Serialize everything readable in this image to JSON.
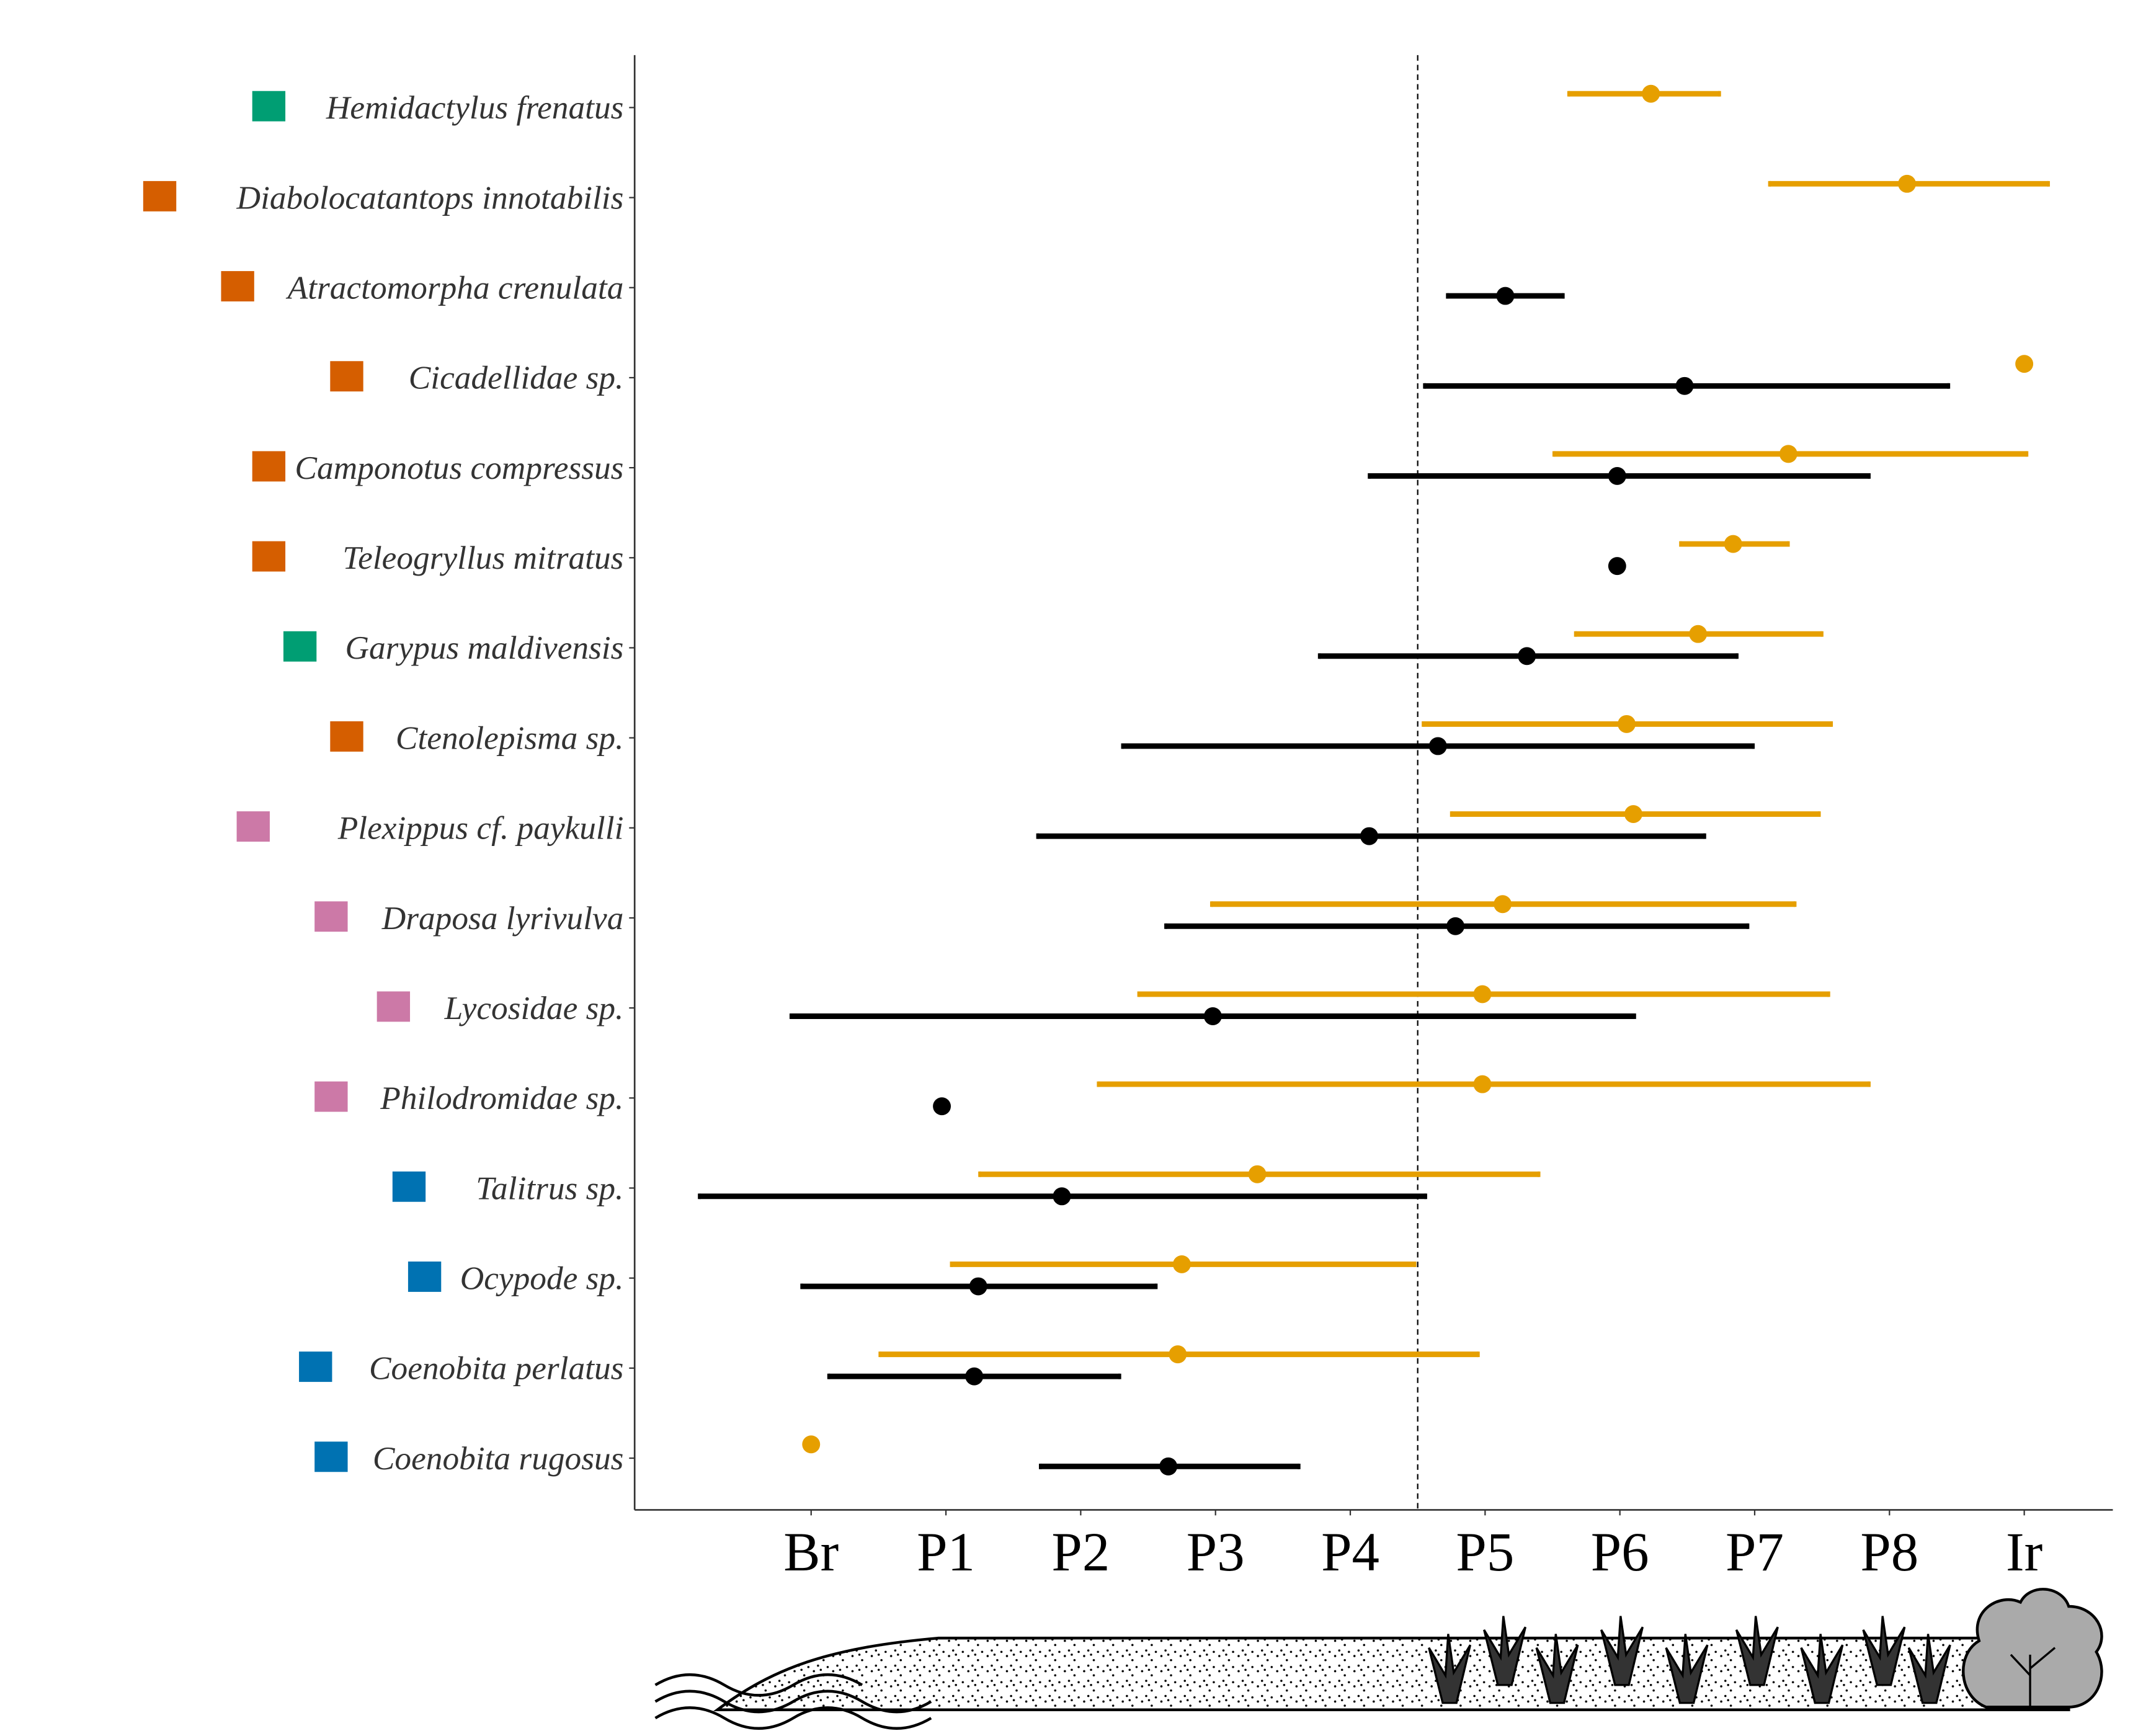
{
  "chart_data": {
    "type": "scatter",
    "title": "",
    "xlabel": "",
    "ylabel": "",
    "x_categories": [
      "Br",
      "P1",
      "P2",
      "P3",
      "P4",
      "P5",
      "P6",
      "P7",
      "P8",
      "Ir"
    ],
    "reference_line": 4.5,
    "group_colors": {
      "green": "#009E73",
      "orange": "#D55E00",
      "pink": "#CC79A7",
      "blue": "#0072B2"
    },
    "series_colors": {
      "series_a": "#E69F00",
      "series_b": "#000000"
    },
    "rows": [
      {
        "species": "Hemidactylus frenatus",
        "group": "green",
        "series_a": {
          "lo": 5.62,
          "mid": 6.23,
          "hi": 6.74
        },
        "series_b": null
      },
      {
        "species": "Diabolocatantops innotabilis",
        "group": "orange",
        "series_a": {
          "lo": 7.11,
          "mid": 8.13,
          "hi": 9.18
        },
        "series_b": null
      },
      {
        "species": "Atractomorpha crenulata",
        "group": "orange",
        "series_a": null,
        "series_b": {
          "lo": 4.72,
          "mid": 5.15,
          "hi": 5.58
        }
      },
      {
        "species": "Cicadellidae sp.",
        "group": "orange",
        "series_a": {
          "lo": 9.0,
          "mid": 9.0,
          "hi": 9.0
        },
        "series_b": {
          "lo": 4.55,
          "mid": 6.48,
          "hi": 8.44
        }
      },
      {
        "species": "Camponotus compressus",
        "group": "orange",
        "series_a": {
          "lo": 5.51,
          "mid": 7.25,
          "hi": 9.02
        },
        "series_b": {
          "lo": 4.14,
          "mid": 5.98,
          "hi": 7.85
        }
      },
      {
        "species": "Teleogryllus mitratus",
        "group": "orange",
        "series_a": {
          "lo": 6.45,
          "mid": 6.84,
          "hi": 7.25
        },
        "series_b": {
          "lo": 5.98,
          "mid": 5.98,
          "hi": 5.98
        }
      },
      {
        "species": "Garypus maldivensis",
        "group": "green",
        "series_a": {
          "lo": 5.67,
          "mid": 6.58,
          "hi": 7.5
        },
        "series_b": {
          "lo": 3.77,
          "mid": 5.31,
          "hi": 6.87
        }
      },
      {
        "species": "Ctenolepisma sp.",
        "group": "orange",
        "series_a": {
          "lo": 4.54,
          "mid": 6.05,
          "hi": 7.57
        },
        "series_b": {
          "lo": 2.31,
          "mid": 4.65,
          "hi": 6.99
        }
      },
      {
        "species": "Plexippus cf. paykulli",
        "group": "pink",
        "series_a": {
          "lo": 4.75,
          "mid": 6.1,
          "hi": 7.48
        },
        "series_b": {
          "lo": 1.68,
          "mid": 4.14,
          "hi": 6.63
        }
      },
      {
        "species": "Draposa lyrivulva",
        "group": "pink",
        "series_a": {
          "lo": 2.97,
          "mid": 5.13,
          "hi": 7.3
        },
        "series_b": {
          "lo": 2.63,
          "mid": 4.78,
          "hi": 6.95
        }
      },
      {
        "species": "Lycosidae sp.",
        "group": "pink",
        "series_a": {
          "lo": 2.43,
          "mid": 4.98,
          "hi": 7.55
        },
        "series_b": {
          "lo": -0.15,
          "mid": 2.98,
          "hi": 6.11
        }
      },
      {
        "species": "Philodromidae sp.",
        "group": "pink",
        "series_a": {
          "lo": 2.13,
          "mid": 4.98,
          "hi": 7.85
        },
        "series_b": {
          "lo": 0.97,
          "mid": 0.97,
          "hi": 0.97
        }
      },
      {
        "species": "Talitrus sp.",
        "group": "blue",
        "series_a": {
          "lo": 1.25,
          "mid": 3.31,
          "hi": 5.4
        },
        "series_b": {
          "lo": -0.83,
          "mid": 1.86,
          "hi": 4.56
        }
      },
      {
        "species": "Ocypode sp.",
        "group": "blue",
        "series_a": {
          "lo": 1.04,
          "mid": 2.75,
          "hi": 4.48
        },
        "series_b": {
          "lo": -0.07,
          "mid": 1.24,
          "hi": 2.56
        }
      },
      {
        "species": "Coenobita perlatus",
        "group": "blue",
        "series_a": {
          "lo": 0.51,
          "mid": 2.72,
          "hi": 4.95
        },
        "series_b": {
          "lo": 0.13,
          "mid": 1.21,
          "hi": 2.29
        }
      },
      {
        "species": "Coenobita rugosus",
        "group": "blue",
        "series_a": {
          "lo": 0,
          "mid": 0,
          "hi": 0
        },
        "series_b": {
          "lo": 1.7,
          "mid": 2.65,
          "hi": 3.62
        }
      }
    ]
  }
}
